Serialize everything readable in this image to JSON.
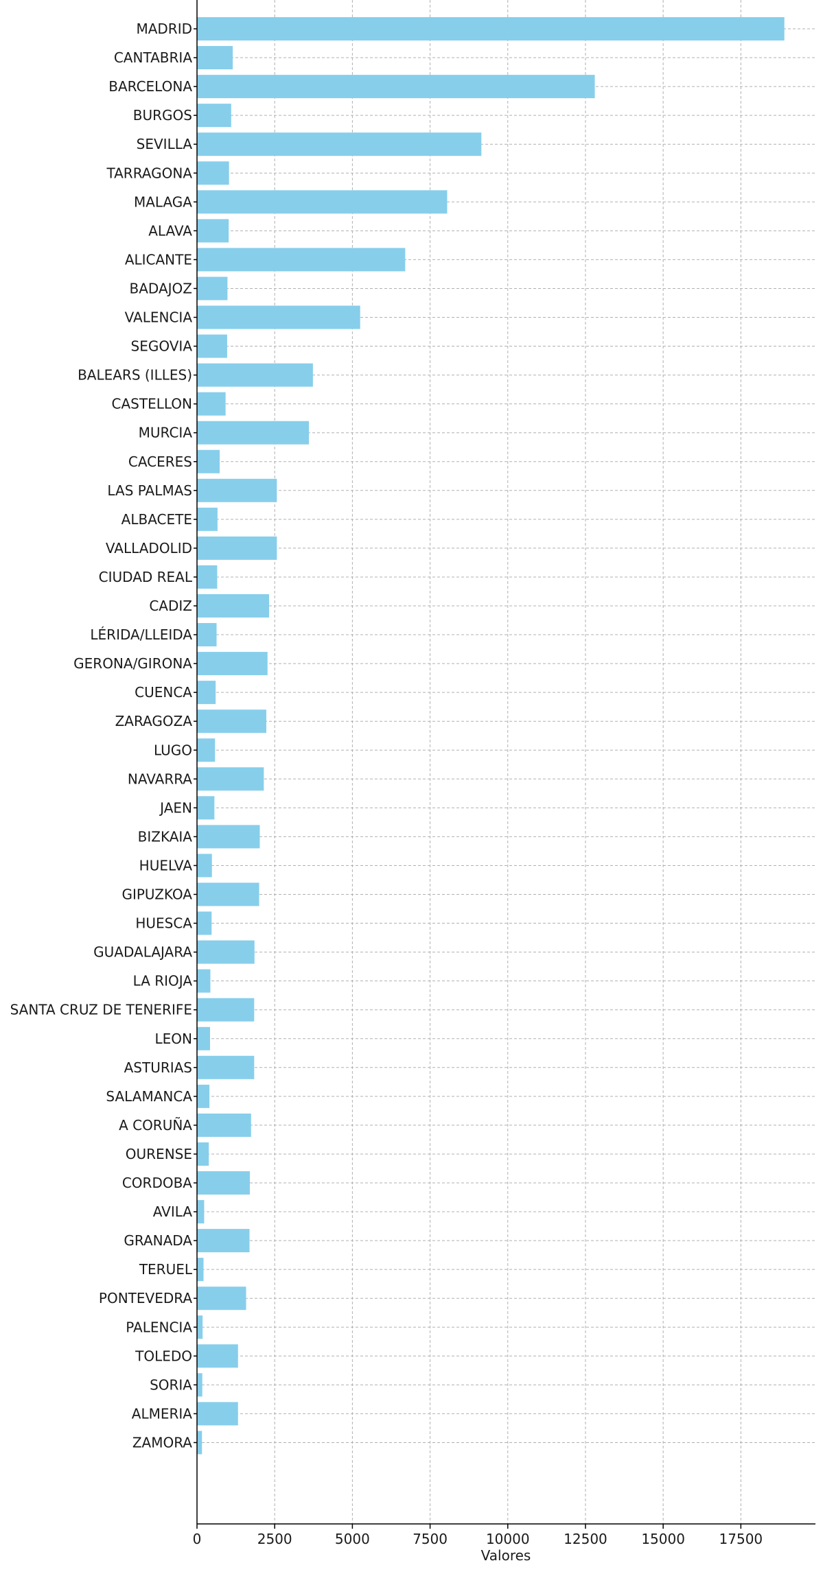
{
  "chart_data": {
    "type": "bar",
    "orientation": "horizontal",
    "xlabel": "Valores",
    "ylabel": "",
    "xlim": [
      0,
      19900
    ],
    "xticks": [
      0,
      2500,
      5000,
      7500,
      10000,
      12500,
      15000,
      17500
    ],
    "grid": true,
    "bar_color": "#87CEEB",
    "categories": [
      "MADRID",
      "CANTABRIA",
      "BARCELONA",
      "BURGOS",
      "SEVILLA",
      "TARRAGONA",
      "MALAGA",
      "ALAVA",
      "ALICANTE",
      "BADAJOZ",
      "VALENCIA",
      "SEGOVIA",
      "BALEARS (ILLES)",
      "CASTELLON",
      "MURCIA",
      "CACERES",
      "LAS PALMAS",
      "ALBACETE",
      "VALLADOLID",
      "CIUDAD REAL",
      "CADIZ",
      "LÉRIDA/LLEIDA",
      "GERONA/GIRONA",
      "CUENCA",
      "ZARAGOZA",
      "LUGO",
      "NAVARRA",
      "JAEN",
      "BIZKAIA",
      "HUELVA",
      "GIPUZKOA",
      "HUESCA",
      "GUADALAJARA",
      "LA RIOJA",
      "SANTA CRUZ DE TENERIFE",
      "LEON",
      "ASTURIAS",
      "SALAMANCA",
      "A CORUÑA",
      "OURENSE",
      "CORDOBA",
      "AVILA",
      "GRANADA",
      "TERUEL",
      "PONTEVEDRA",
      "PALENCIA",
      "TOLEDO",
      "SORIA",
      "ALMERIA",
      "ZAMORA"
    ],
    "values": [
      18900,
      1150,
      12800,
      1100,
      9150,
      1030,
      8050,
      1020,
      6700,
      980,
      5250,
      970,
      3730,
      920,
      3600,
      730,
      2570,
      660,
      2570,
      650,
      2320,
      630,
      2270,
      600,
      2230,
      580,
      2150,
      560,
      2020,
      480,
      2000,
      470,
      1850,
      430,
      1840,
      420,
      1840,
      400,
      1740,
      380,
      1700,
      230,
      1690,
      210,
      1580,
      180,
      1320,
      170,
      1320,
      160
    ]
  }
}
